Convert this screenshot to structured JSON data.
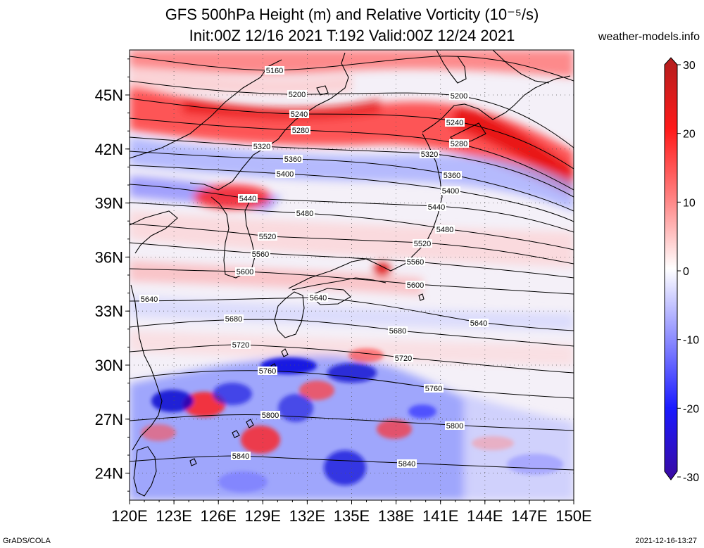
{
  "header": {
    "title_line1": "GFS 500hPa Height (m) and Relative Vorticity (10⁻⁵/s)",
    "title_line2": "Init:00Z 12/16 2021 T:192 Valid:00Z 12/24 2021",
    "site": "weather-models.info"
  },
  "footer": {
    "left": "GrADS/COLA",
    "right": "2021-12-16-13:27"
  },
  "map": {
    "lon_range": [
      120,
      150
    ],
    "lat_range": [
      22.5,
      47.5
    ],
    "x_ticks": [
      "120E",
      "123E",
      "126E",
      "129E",
      "132E",
      "135E",
      "138E",
      "141E",
      "144E",
      "147E",
      "150E"
    ],
    "y_ticks": [
      "24N",
      "27N",
      "30N",
      "33N",
      "36N",
      "39N",
      "42N",
      "45N"
    ],
    "contour_interval_m": 40,
    "contours": [
      {
        "label": "5160"
      },
      {
        "label": "5200"
      },
      {
        "label": "5240"
      },
      {
        "label": "5280"
      },
      {
        "label": "5320"
      },
      {
        "label": "5360"
      },
      {
        "label": "5400"
      },
      {
        "label": "5440"
      },
      {
        "label": "5480"
      },
      {
        "label": "5520"
      },
      {
        "label": "5560"
      },
      {
        "label": "5600"
      },
      {
        "label": "5640"
      },
      {
        "label": "5680"
      },
      {
        "label": "5720"
      },
      {
        "label": "5760"
      },
      {
        "label": "5800"
      },
      {
        "label": "5840"
      }
    ]
  },
  "colorbar": {
    "ticks": [
      "30",
      "20",
      "10",
      "0",
      "-10",
      "-20",
      "-30"
    ],
    "colors": {
      "max": "#b21d1d",
      "high": "#ff1a1a",
      "mid_high": "#ff8080",
      "zero": "#ffffff",
      "mid_low": "#8a8aff",
      "low": "#1a1aff",
      "min": "#3a0aa0"
    }
  }
}
